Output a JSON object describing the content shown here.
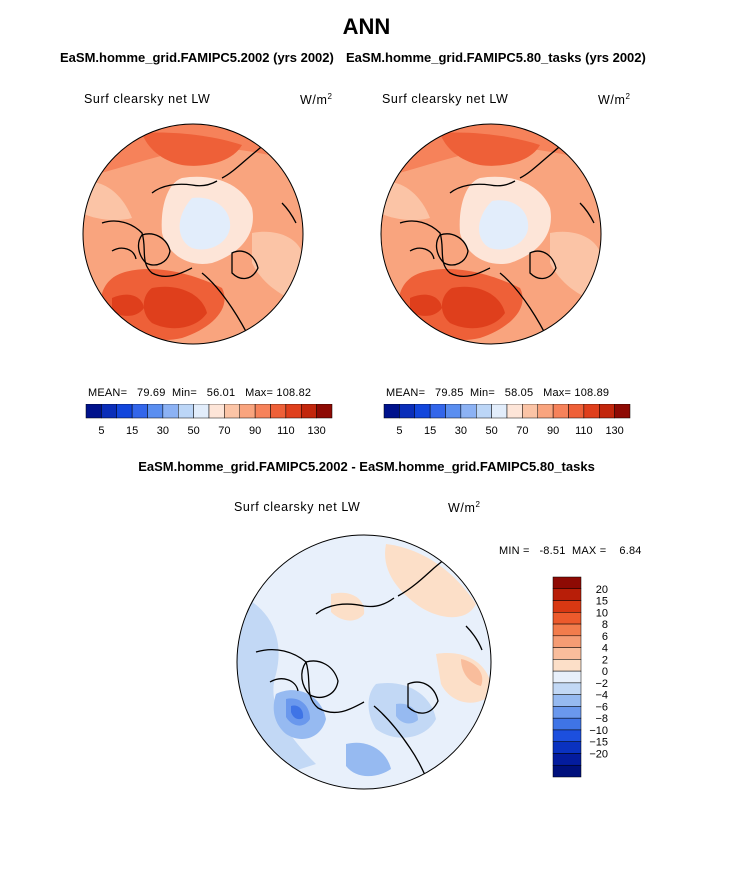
{
  "title": "ANN",
  "panels": [
    {
      "case": "EaSM.homme_grid.FAMIPC5.2002 (yrs 2002)",
      "variable": "Surf clearsky net LW",
      "units_base": "W/m",
      "units_exp": "2",
      "mean_label": "MEAN=",
      "mean": "79.69",
      "min_label": "Min=",
      "min": "56.01",
      "max_label": "Max=",
      "max": "108.82"
    },
    {
      "case": "EaSM.homme_grid.FAMIPC5.80_tasks (yrs 2002)",
      "variable": "Surf clearsky net LW",
      "units_base": "W/m",
      "units_exp": "2",
      "mean_label": "MEAN=",
      "mean": "79.85",
      "min_label": "Min=",
      "min": "58.05",
      "max_label": "Max=",
      "max": "108.89"
    }
  ],
  "diff": {
    "title": "EaSM.homme_grid.FAMIPC5.2002 - EaSM.homme_grid.FAMIPC5.80_tasks",
    "variable": "Surf clearsky net LW",
    "units_base": "W/m",
    "units_exp": "2",
    "min_label": "MIN =",
    "min": "-8.51",
    "max_label": "MAX =",
    "max": "6.84"
  },
  "chart_data": [
    {
      "type": "heatmap",
      "projection": "north polar stereographic",
      "title": "Surf clearsky net LW",
      "case": "EaSM.homme_grid.FAMIPC5.2002 (yrs 2002)",
      "units": "W/m2",
      "stats": {
        "mean": 79.69,
        "min": 56.01,
        "max": 108.82
      },
      "colorbar": {
        "tick_labels": [
          "5",
          "15",
          "30",
          "50",
          "70",
          "90",
          "110",
          "130"
        ],
        "colors": [
          "#00128c",
          "#0a2eb9",
          "#1246dc",
          "#3366ea",
          "#5a8ef0",
          "#8cb2f4",
          "#bcd6f7",
          "#e2edfb",
          "#fde5d8",
          "#fbc4a6",
          "#f9a47e",
          "#f6825a",
          "#ee6038",
          "#df3f1c",
          "#c2260c",
          "#8e0a04"
        ]
      }
    },
    {
      "type": "heatmap",
      "projection": "north polar stereographic",
      "title": "Surf clearsky net LW",
      "case": "EaSM.homme_grid.FAMIPC5.80_tasks (yrs 2002)",
      "units": "W/m2",
      "stats": {
        "mean": 79.85,
        "min": 58.05,
        "max": 108.89
      },
      "colorbar": {
        "tick_labels": [
          "5",
          "15",
          "30",
          "50",
          "70",
          "90",
          "110",
          "130"
        ],
        "colors": [
          "#00128c",
          "#0a2eb9",
          "#1246dc",
          "#3366ea",
          "#5a8ef0",
          "#8cb2f4",
          "#bcd6f7",
          "#e2edfb",
          "#fde5d8",
          "#fbc4a6",
          "#f9a47e",
          "#f6825a",
          "#ee6038",
          "#df3f1c",
          "#c2260c",
          "#8e0a04"
        ]
      }
    },
    {
      "type": "heatmap",
      "projection": "north polar stereographic",
      "title": "EaSM.homme_grid.FAMIPC5.2002 - EaSM.homme_grid.FAMIPC5.80_tasks",
      "units": "W/m2",
      "stats": {
        "min": -8.51,
        "max": 6.84
      },
      "colorbar": {
        "tick_labels": [
          "20",
          "15",
          "10",
          "8",
          "6",
          "4",
          "2",
          "0",
          "−2",
          "−4",
          "−6",
          "−8",
          "−10",
          "−15",
          "−20"
        ],
        "colors": [
          "#8e0a04",
          "#b81e08",
          "#d83812",
          "#ec5a2c",
          "#f27c4c",
          "#f59c74",
          "#f9bd9c",
          "#fcdfc8",
          "#e8f0fb",
          "#c2d8f5",
          "#96baf1",
          "#6a98ed",
          "#3f74e6",
          "#1c4fde",
          "#0a32c0",
          "#041c9e",
          "#00107c"
        ]
      }
    }
  ]
}
